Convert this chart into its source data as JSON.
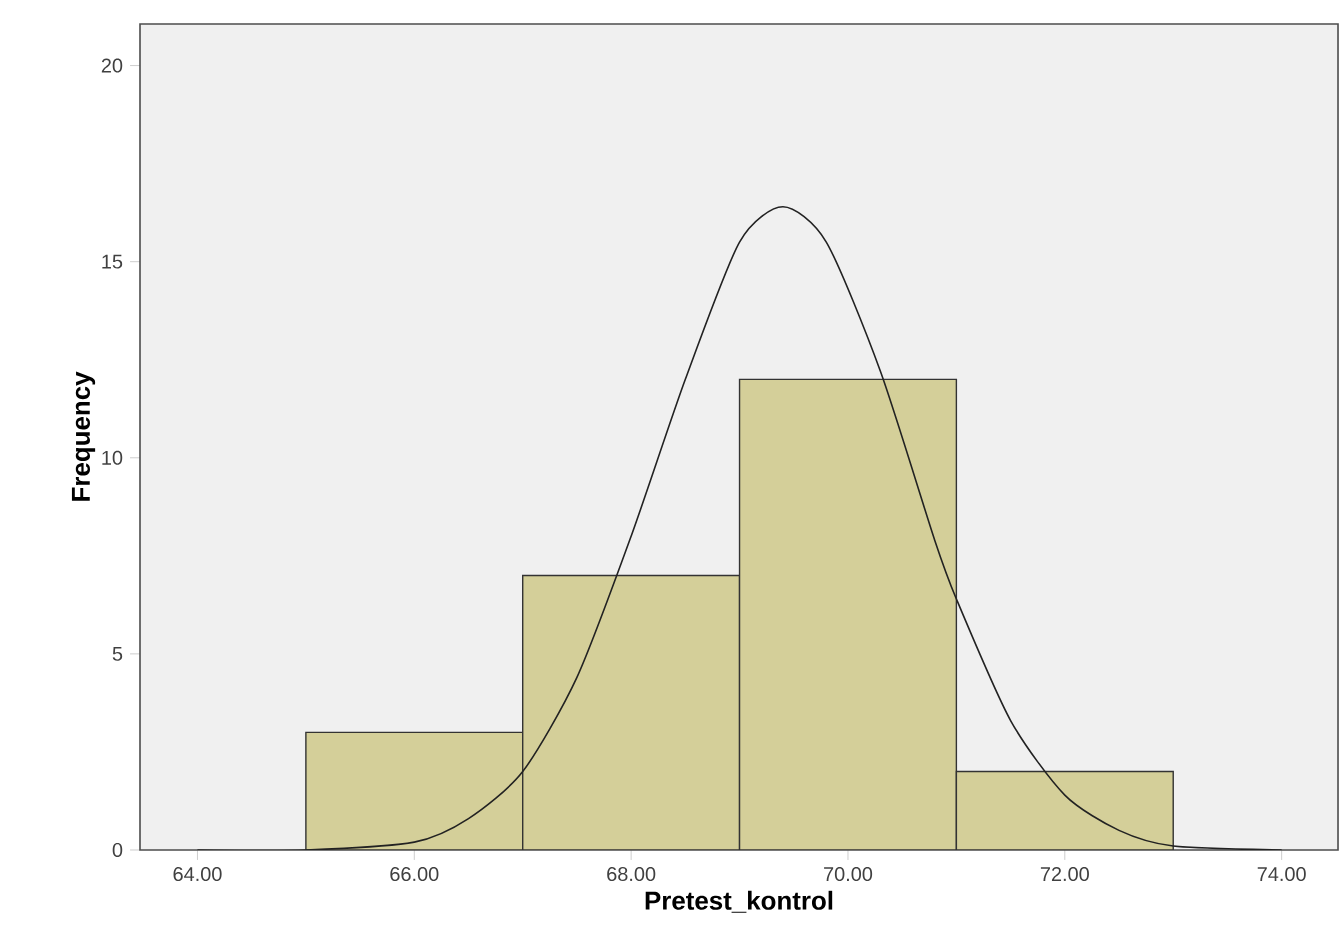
{
  "chart_data": {
    "type": "histogram",
    "xlabel": "Pretest_kontrol",
    "ylabel": "Frequency",
    "bins": [
      65,
      67,
      69,
      71,
      73
    ],
    "values": [
      3,
      7,
      12,
      2
    ],
    "color": "#d4cf99",
    "series": [
      {
        "type": "line",
        "color": "#222222",
        "x": [
          64,
          65,
          66,
          66.5,
          67,
          67.5,
          68,
          68.5,
          69,
          69.4,
          69.8,
          70.3,
          70.8,
          71,
          71.5,
          72,
          72.5,
          73,
          74
        ],
        "values": [
          0,
          0,
          0.2,
          0.8,
          2.0,
          4.4,
          8.0,
          12.0,
          15.5,
          16.4,
          15.5,
          12.2,
          7.9,
          6.4,
          3.3,
          1.4,
          0.5,
          0.1,
          0
        ]
      }
    ],
    "xlim": [
      63.47,
      74.52
    ],
    "ylim": [
      0,
      21.06
    ],
    "xticks": [
      {
        "value": 64,
        "label": "64.00"
      },
      {
        "value": 66,
        "label": "66.00"
      },
      {
        "value": 68,
        "label": "68.00"
      },
      {
        "value": 70,
        "label": "70.00"
      },
      {
        "value": 72,
        "label": "72.00"
      },
      {
        "value": 74,
        "label": "74.00"
      }
    ],
    "yticks": [
      0,
      5,
      10,
      15,
      20
    ],
    "grid": false,
    "marker": "none",
    "line_style": "solid"
  }
}
